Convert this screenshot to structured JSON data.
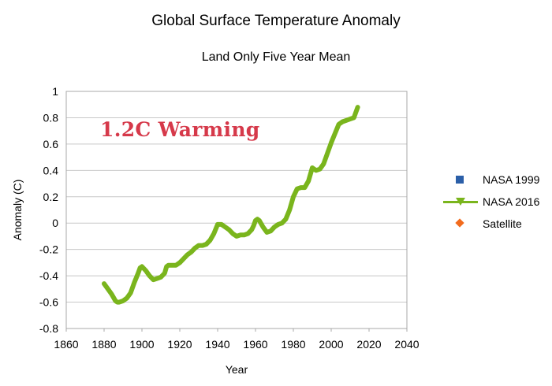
{
  "chart_data": {
    "type": "line",
    "title": "Global Surface Temperature Anomaly",
    "subtitle": "Land Only  Five Year Mean",
    "xlabel": "Year",
    "ylabel": "Anomaly (C)",
    "xlim": [
      1860,
      2040
    ],
    "ylim": [
      -0.8,
      1
    ],
    "xticks": [
      "1860",
      "1880",
      "1900",
      "1920",
      "1940",
      "1960",
      "1980",
      "2000",
      "2020",
      "2040"
    ],
    "yticks": [
      "1",
      "0.8",
      "0.6",
      "0.4",
      "0.2",
      "0",
      "-0.2",
      "-0.4",
      "-0.6",
      "-0.8"
    ],
    "grid": "horizontal",
    "legend_position": "right",
    "annotation": "1.2C Warming",
    "annotation_color": "#d6394a",
    "series": [
      {
        "name": "NASA 1999",
        "color": "#2b5fa8",
        "marker": "square",
        "x": [],
        "y": []
      },
      {
        "name": "NASA 2016",
        "color": "#7ab51d",
        "marker": "triangle-down",
        "x": [
          1880,
          1882,
          1884,
          1886,
          1887,
          1888,
          1890,
          1892,
          1894,
          1896,
          1898,
          1899,
          1900,
          1902,
          1904,
          1906,
          1908,
          1910,
          1912,
          1913,
          1914,
          1916,
          1918,
          1920,
          1922,
          1924,
          1926,
          1928,
          1930,
          1932,
          1934,
          1936,
          1938,
          1940,
          1942,
          1944,
          1946,
          1948,
          1950,
          1952,
          1954,
          1956,
          1958,
          1959,
          1960,
          1961,
          1962,
          1964,
          1966,
          1968,
          1970,
          1972,
          1974,
          1976,
          1978,
          1980,
          1982,
          1984,
          1986,
          1988,
          1990,
          1992,
          1994,
          1996,
          1998,
          2000,
          2002,
          2004,
          2006,
          2008,
          2010,
          2012,
          2014
        ],
        "y": [
          -0.46,
          -0.5,
          -0.54,
          -0.59,
          -0.6,
          -0.6,
          -0.59,
          -0.57,
          -0.53,
          -0.45,
          -0.38,
          -0.34,
          -0.33,
          -0.36,
          -0.4,
          -0.43,
          -0.42,
          -0.41,
          -0.38,
          -0.33,
          -0.32,
          -0.32,
          -0.32,
          -0.3,
          -0.27,
          -0.24,
          -0.22,
          -0.19,
          -0.17,
          -0.17,
          -0.16,
          -0.13,
          -0.08,
          -0.01,
          -0.01,
          -0.03,
          -0.05,
          -0.08,
          -0.1,
          -0.09,
          -0.09,
          -0.08,
          -0.05,
          -0.02,
          0.02,
          0.03,
          0.02,
          -0.03,
          -0.07,
          -0.06,
          -0.03,
          -0.01,
          0.0,
          0.03,
          0.1,
          0.2,
          0.26,
          0.27,
          0.27,
          0.32,
          0.42,
          0.4,
          0.41,
          0.45,
          0.53,
          0.61,
          0.68,
          0.75,
          0.77,
          0.78,
          0.79,
          0.8,
          0.88
        ]
      },
      {
        "name": "Satellite",
        "color": "#f26b1d",
        "marker": "diamond",
        "x": [],
        "y": []
      }
    ]
  }
}
